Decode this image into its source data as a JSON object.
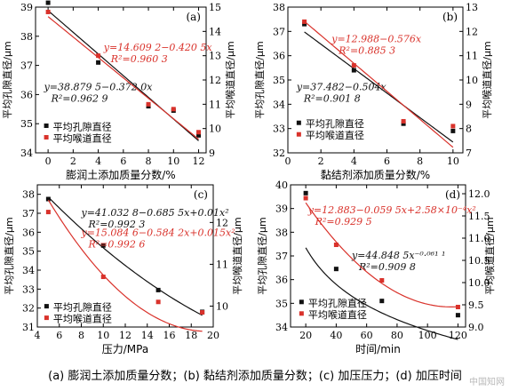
{
  "caption": "(a) 膨润土添加质量分数；(b) 黏结剂添加质量分数；(c) 加压压力；(d) 加压时间",
  "watermark": "中国知网",
  "colors": {
    "black": "#111111",
    "red": "#d9322b",
    "axis": "#000000"
  },
  "chart_data": [
    {
      "type": "scatter",
      "panel_label": "(a)",
      "xlabel": "膨润土添加质量分数/%",
      "ylabel": "平均孔隙直径/μm",
      "y2label": "平均喉道直径/μm",
      "xlim": [
        -1,
        12.6
      ],
      "ylim": [
        34,
        39
      ],
      "y2lim": [
        9,
        15
      ],
      "xticks": [
        0,
        2,
        4,
        6,
        8,
        10,
        12
      ],
      "yticks": [
        34,
        35,
        36,
        37,
        38,
        39
      ],
      "y2ticks": [
        9,
        10,
        11,
        12,
        13,
        14,
        15
      ],
      "grid": false,
      "legend_position": "bottom-left",
      "series": [
        {
          "name": "平均孔隙直径",
          "axis": "y",
          "color": "black",
          "marker": "square",
          "x": [
            0,
            4,
            8,
            10,
            12
          ],
          "y": [
            39.15,
            37.1,
            35.6,
            35.45,
            34.6
          ],
          "fit": {
            "kind": "linear",
            "a": 38.8795,
            "b": -0.372,
            "label": "y=38.879 5−0.372 0x",
            "r2": "R²=0.962 9"
          }
        },
        {
          "name": "平均喉道直径",
          "axis": "y2",
          "color": "red",
          "marker": "square",
          "x": [
            0,
            4,
            8,
            10,
            12
          ],
          "y": [
            14.8,
            13.0,
            11.0,
            10.8,
            9.85
          ],
          "fit": {
            "kind": "linear",
            "a": 14.6092,
            "b": -0.4205,
            "label": "y=14.609 2−0.420 5x",
            "r2": "R²=0.960 3"
          }
        }
      ]
    },
    {
      "type": "scatter",
      "panel_label": "(b)",
      "xlabel": "黏结剂添加质量分数/%",
      "ylabel": "平均孔隙直径/μm",
      "y2label": "平均喉道直径/μm",
      "xlim": [
        0,
        10.6
      ],
      "ylim": [
        32,
        38
      ],
      "y2lim": [
        7,
        13
      ],
      "xticks": [
        0,
        2,
        4,
        6,
        8,
        10
      ],
      "yticks": [
        32,
        33,
        34,
        35,
        36,
        37,
        38
      ],
      "y2ticks": [
        7,
        8,
        9,
        10,
        11,
        12,
        13
      ],
      "grid": false,
      "legend_position": "bottom-left",
      "series": [
        {
          "name": "平均孔隙直径",
          "axis": "y",
          "color": "black",
          "marker": "square",
          "x": [
            1,
            4,
            7,
            10
          ],
          "y": [
            37.3,
            35.4,
            33.2,
            32.9
          ],
          "fit": {
            "kind": "linear",
            "a": 37.482,
            "b": -0.504,
            "label": "y=37.482−0.504x",
            "r2": "R²=0.901 8"
          }
        },
        {
          "name": "平均喉道直径",
          "axis": "y2",
          "color": "red",
          "marker": "square",
          "x": [
            1,
            4,
            7,
            10
          ],
          "y": [
            12.4,
            10.6,
            8.3,
            8.1
          ],
          "fit": {
            "kind": "linear",
            "a": 12.988,
            "b": -0.576,
            "label": "y=12.988−0.576x",
            "r2": "R²=0.885 3"
          }
        }
      ]
    },
    {
      "type": "scatter",
      "panel_label": "(c)",
      "xlabel": "压力/MPa",
      "ylabel": "平均孔隙直径/μm",
      "y2label": "平均喉道直径/μm",
      "xlim": [
        4,
        20
      ],
      "ylim": [
        31,
        38.5
      ],
      "y2lim": [
        9.5,
        12.9
      ],
      "xticks": [
        4,
        6,
        8,
        10,
        12,
        14,
        16,
        18,
        20
      ],
      "yticks": [
        31,
        32,
        33,
        34,
        35,
        36,
        37,
        38
      ],
      "y2ticks": [
        10,
        11,
        12
      ],
      "grid": false,
      "legend_position": "bottom-left",
      "series": [
        {
          "name": "平均孔隙直径",
          "axis": "y",
          "color": "black",
          "marker": "square",
          "x": [
            5,
            10,
            15,
            19
          ],
          "y": [
            37.75,
            35.3,
            32.95,
            31.8
          ],
          "fit": {
            "kind": "quadratic",
            "a": 41.0328,
            "b": -0.6855,
            "c": 0.01,
            "range": [
              5,
              19
            ],
            "label": "y=41.032 8−0.685 5x+0.01x²",
            "r2": "R²=0.992 3"
          }
        },
        {
          "name": "平均喉道直径",
          "axis": "y2",
          "color": "red",
          "marker": "square",
          "x": [
            5,
            10,
            15,
            19
          ],
          "y": [
            12.25,
            10.7,
            10.1,
            9.85
          ],
          "fit": {
            "kind": "quadratic",
            "a": 15.0846,
            "b": -0.5842,
            "c": 0.015,
            "range": [
              5,
              19
            ],
            "label": "y=15.084 6−0.584 2x+0.015x²",
            "r2": "R²=0.992 6"
          }
        }
      ]
    },
    {
      "type": "scatter",
      "panel_label": "(d)",
      "xlabel": "时间/min",
      "ylabel": "平均孔隙直径/μm",
      "y2label": "平均喉道直径/μm",
      "xlim": [
        10,
        125
      ],
      "ylim": [
        34,
        40
      ],
      "y2lim": [
        9.0,
        12.2
      ],
      "xticks": [
        20,
        40,
        60,
        80,
        100,
        120
      ],
      "yticks": [
        34,
        35,
        36,
        37,
        38,
        39,
        40
      ],
      "y2ticks": [
        9.0,
        9.5,
        10.0,
        10.5,
        11.0,
        11.5,
        12.0
      ],
      "grid": false,
      "legend_position": "bottom-left",
      "series": [
        {
          "name": "平均孔隙直径",
          "axis": "y",
          "color": "black",
          "marker": "square",
          "x": [
            20,
            40,
            70,
            120
          ],
          "y": [
            39.65,
            36.45,
            35.1,
            34.5
          ],
          "fit": {
            "kind": "power",
            "a": 44.848,
            "b": -0.0611,
            "range": [
              20,
              120
            ],
            "label": "y=44.848 5x⁻⁰·⁰⁶¹ ¹",
            "r2": "R²=0.909 8"
          }
        },
        {
          "name": "平均喉道直径",
          "axis": "y2",
          "color": "red",
          "marker": "square",
          "x": [
            20,
            40,
            70,
            120
          ],
          "y": [
            11.9,
            10.85,
            10.05,
            9.45
          ],
          "fit": {
            "kind": "quadratic",
            "a": 12.883,
            "b": -0.0595,
            "c": 0.000258,
            "range": [
              20,
              120
            ],
            "label": "y=12.883−0.059 5x+2.58×10⁻⁴x²",
            "r2": "R²=0.929 5"
          }
        }
      ]
    }
  ]
}
